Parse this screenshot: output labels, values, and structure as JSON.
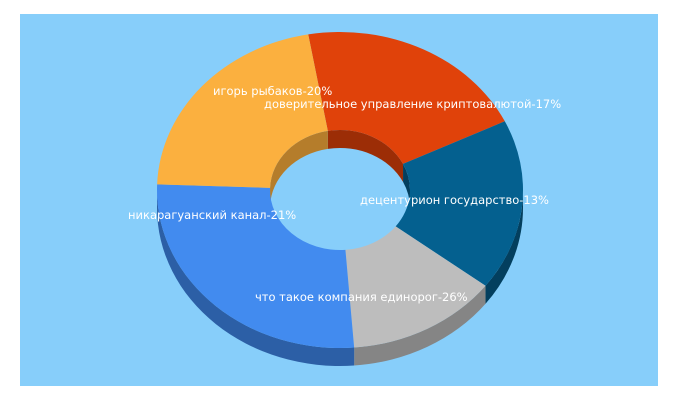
{
  "chart_data": {
    "type": "pie",
    "variant": "3d-donut",
    "title": "",
    "background_color": "#87cefa",
    "slices": [
      {
        "label": "игорь рыбаков-20%",
        "value": 20,
        "color": "#e0420a",
        "side_color": "#9c2d06"
      },
      {
        "label": "доверительное управление криптовалютой-17%",
        "value": 17,
        "color": "#04608f",
        "side_color": "#033f5e"
      },
      {
        "label": "децентурион государство-13%",
        "value": 13,
        "color": "#bdbdbd",
        "side_color": "#858585"
      },
      {
        "label": "что такое компания единорог-26%",
        "value": 26,
        "color": "#428bef",
        "side_color": "#2c5fa6"
      },
      {
        "label": "никарагуанский канал-21%",
        "value": 21,
        "color": "#fbb03f",
        "side_color": "#b57d2b"
      }
    ]
  }
}
